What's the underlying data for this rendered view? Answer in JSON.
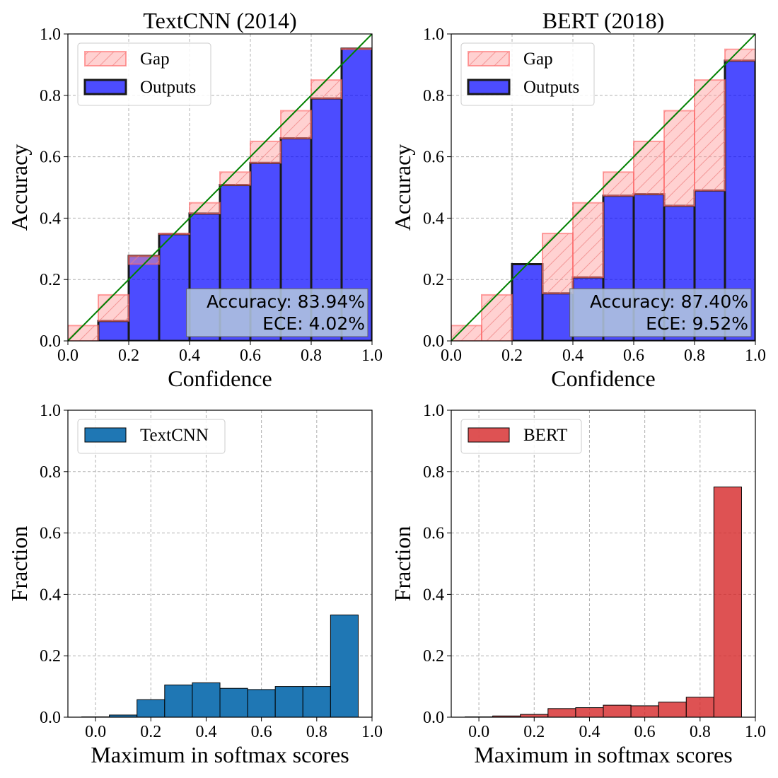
{
  "chart_data": [
    {
      "type": "bar",
      "subtype": "reliability-diagram",
      "title": "TextCNN (2014)",
      "xlabel": "Confidence",
      "ylabel": "Accuracy",
      "xlim": [
        0.0,
        1.0
      ],
      "ylim": [
        0.0,
        1.0
      ],
      "xticks": [
        "0.0",
        "0.2",
        "0.4",
        "0.6",
        "0.8",
        "1.0"
      ],
      "yticks": [
        "0.0",
        "0.2",
        "0.4",
        "0.6",
        "0.8",
        "1.0"
      ],
      "grid": true,
      "legend_position": "top-left",
      "bin_edges": [
        0.0,
        0.1,
        0.2,
        0.3,
        0.4,
        0.5,
        0.6,
        0.7,
        0.8,
        0.9,
        1.0
      ],
      "series": [
        {
          "name": "Gap",
          "values": [
            0.05,
            0.15,
            0.25,
            0.35,
            0.45,
            0.55,
            0.65,
            0.75,
            0.85,
            0.95
          ],
          "color": "#ff9999"
        },
        {
          "name": "Outputs",
          "values": [
            0.0,
            0.065,
            0.277,
            0.348,
            0.415,
            0.508,
            0.58,
            0.66,
            0.79,
            0.952
          ],
          "color": "#0000ff"
        }
      ],
      "diagonal_color": "#008000",
      "annotation": {
        "accuracy": "Accuracy: 83.94%",
        "ece": "ECE: 4.02%"
      }
    },
    {
      "type": "bar",
      "subtype": "reliability-diagram",
      "title": "BERT (2018)",
      "xlabel": "Confidence",
      "ylabel": "Accuracy",
      "xlim": [
        0.0,
        1.0
      ],
      "ylim": [
        0.0,
        1.0
      ],
      "xticks": [
        "0.0",
        "0.2",
        "0.4",
        "0.6",
        "0.8",
        "1.0"
      ],
      "yticks": [
        "0.0",
        "0.2",
        "0.4",
        "0.6",
        "0.8",
        "1.0"
      ],
      "grid": true,
      "legend_position": "top-left",
      "bin_edges": [
        0.0,
        0.1,
        0.2,
        0.3,
        0.4,
        0.5,
        0.6,
        0.7,
        0.8,
        0.9,
        1.0
      ],
      "series": [
        {
          "name": "Gap",
          "values": [
            0.05,
            0.15,
            0.25,
            0.35,
            0.45,
            0.55,
            0.65,
            0.75,
            0.85,
            0.95
          ],
          "color": "#ff9999"
        },
        {
          "name": "Outputs",
          "values": [
            0.0,
            0.0,
            0.25,
            0.155,
            0.207,
            0.473,
            0.478,
            0.44,
            0.49,
            0.913
          ],
          "color": "#0000ff"
        }
      ],
      "diagonal_color": "#008000",
      "annotation": {
        "accuracy": "Accuracy: 87.40%",
        "ece": "ECE: 9.52%"
      }
    },
    {
      "type": "bar",
      "subtype": "histogram",
      "xlabel": "Maximum in softmax scores",
      "ylabel": "Fraction",
      "xlim": [
        -0.1,
        1.0
      ],
      "ylim": [
        0.0,
        1.0
      ],
      "xticks": [
        "0.0",
        "0.2",
        "0.4",
        "0.6",
        "0.8",
        "1.0"
      ],
      "yticks": [
        "0.0",
        "0.2",
        "0.4",
        "0.6",
        "0.8",
        "1.0"
      ],
      "grid": true,
      "legend_position": "top-left",
      "bin_edges": [
        -0.05,
        0.05,
        0.15,
        0.25,
        0.35,
        0.45,
        0.55,
        0.65,
        0.75,
        0.85,
        0.95
      ],
      "series": [
        {
          "name": "TextCNN",
          "values": [
            0.001,
            0.007,
            0.057,
            0.105,
            0.112,
            0.094,
            0.09,
            0.1,
            0.1,
            0.333
          ],
          "color": "#1f77b4"
        }
      ]
    },
    {
      "type": "bar",
      "subtype": "histogram",
      "xlabel": "Maximum in softmax scores",
      "ylabel": "Fraction",
      "xlim": [
        -0.1,
        1.0
      ],
      "ylim": [
        0.0,
        1.0
      ],
      "xticks": [
        "0.0",
        "0.2",
        "0.4",
        "0.6",
        "0.8",
        "1.0"
      ],
      "yticks": [
        "0.0",
        "0.2",
        "0.4",
        "0.6",
        "0.8",
        "1.0"
      ],
      "grid": true,
      "legend_position": "top-left",
      "bin_edges": [
        -0.05,
        0.05,
        0.15,
        0.25,
        0.35,
        0.45,
        0.55,
        0.65,
        0.75,
        0.85,
        0.95
      ],
      "series": [
        {
          "name": "BERT",
          "values": [
            0.001,
            0.004,
            0.009,
            0.028,
            0.031,
            0.039,
            0.037,
            0.049,
            0.065,
            0.75
          ],
          "color": "#d62728"
        }
      ]
    }
  ]
}
